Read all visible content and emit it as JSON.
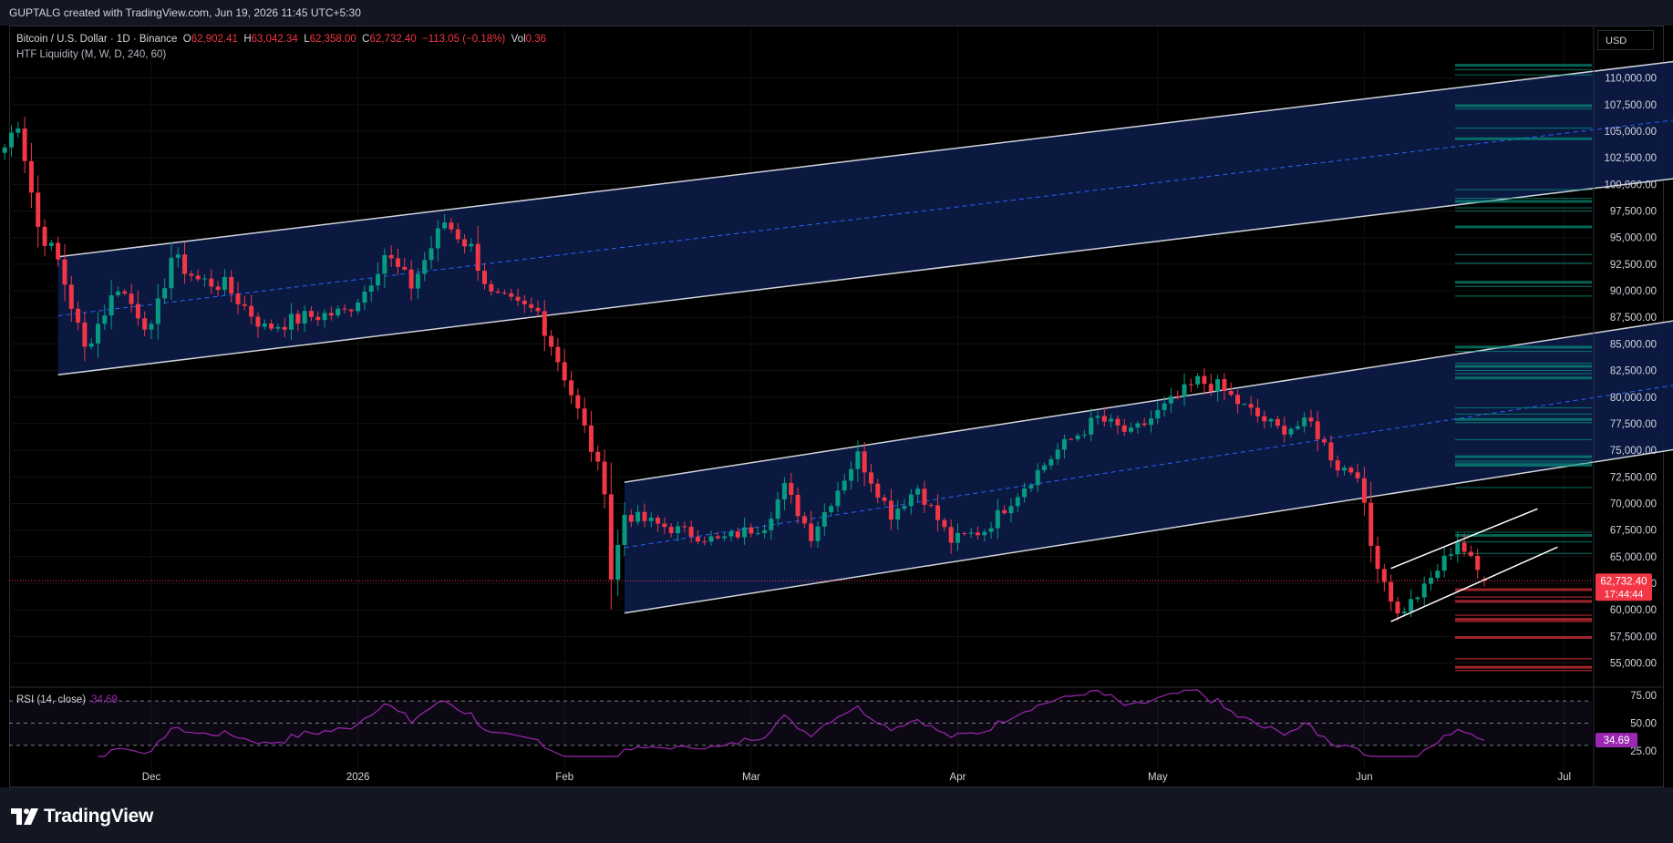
{
  "header": {
    "title": "GUPTALG created with TradingView.com, Jun 19, 2026 11:45 UTC+5:30"
  },
  "legend": {
    "symbol": "Bitcoin / U.S. Dollar · 1D · Binance",
    "o_label": "O",
    "o_val": "62,902.41",
    "h_label": "H",
    "h_val": "63,042.34",
    "l_label": "L",
    "l_val": "62,358.00",
    "c_label": "C",
    "c_val": "62,732.40",
    "change": "−113.05 (−0.18%)",
    "vol_label": "Vol",
    "vol_val": "0.36",
    "indicator": "HTF Liquidity (M, W, D, 240, 60)"
  },
  "rsi": {
    "label": "RSI (14, close)",
    "value": "34.69",
    "ticks": [
      "75.00",
      "50.00",
      "25.00"
    ]
  },
  "footer": {
    "brand": "TradingView"
  },
  "colors": {
    "up": "#089981",
    "down": "#f23645",
    "rsi_line": "#9c27b0",
    "channel_fill": "#0c1a45"
  },
  "chart_data": {
    "type": "candlestick",
    "currency": "USD",
    "price_axis": {
      "ticks": [
        "110,000.00",
        "107,500.00",
        "105,000.00",
        "102,500.00",
        "100,000.00",
        "97,500.00",
        "95,000.00",
        "92,500.00",
        "90,000.00",
        "87,500.00",
        "85,000.00",
        "82,500.00",
        "80,000.00",
        "77,500.00",
        "75,000.00",
        "72,500.00",
        "70,000.00",
        "67,500.00",
        "65,000.00",
        "62,500.00",
        "60,000.00",
        "57,500.00",
        "55,000.00"
      ],
      "range": [
        53500,
        112200
      ]
    },
    "time_axis": [
      "Dec",
      "2026",
      "Feb",
      "Mar",
      "Apr",
      "May",
      "Jun",
      "Jul"
    ],
    "last_price": {
      "value": 62732.4,
      "label": "62,732.40",
      "countdown": "17:44:44"
    },
    "series": [
      {
        "name": "Bitcoin / U.S. Dollar",
        "anchors": [
          [
            "2025-11-09",
            103500
          ],
          [
            "2025-11-11",
            106000
          ],
          [
            "2025-11-14",
            96000
          ],
          [
            "2025-11-17",
            92800
          ],
          [
            "2025-11-21",
            84500
          ],
          [
            "2025-11-26",
            90500
          ],
          [
            "2025-12-01",
            86200
          ],
          [
            "2025-12-04",
            93200
          ],
          [
            "2025-12-08",
            91000
          ],
          [
            "2025-12-12",
            90500
          ],
          [
            "2025-12-18",
            86500
          ],
          [
            "2025-12-24",
            87500
          ],
          [
            "2025-12-30",
            88000
          ],
          [
            "2026-01-02",
            90000
          ],
          [
            "2026-01-05",
            93500
          ],
          [
            "2026-01-09",
            90500
          ],
          [
            "2026-01-14",
            96500
          ],
          [
            "2026-01-18",
            94000
          ],
          [
            "2026-01-21",
            89500
          ],
          [
            "2026-01-25",
            88500
          ],
          [
            "2026-01-28",
            88000
          ],
          [
            "2026-02-01",
            82000
          ],
          [
            "2026-02-04",
            77000
          ],
          [
            "2026-02-07",
            71500
          ],
          [
            "2026-02-08",
            63000
          ],
          [
            "2026-02-10",
            69000
          ],
          [
            "2026-02-15",
            68000
          ],
          [
            "2026-02-24",
            66500
          ],
          [
            "2026-03-03",
            68000
          ],
          [
            "2026-03-06",
            71500
          ],
          [
            "2026-03-10",
            67000
          ],
          [
            "2026-03-15",
            72500
          ],
          [
            "2026-03-17",
            74500
          ],
          [
            "2026-03-22",
            69000
          ],
          [
            "2026-03-26",
            71500
          ],
          [
            "2026-03-31",
            66500
          ],
          [
            "2026-04-05",
            67500
          ],
          [
            "2026-04-10",
            71000
          ],
          [
            "2026-04-16",
            75000
          ],
          [
            "2026-04-22",
            78000
          ],
          [
            "2026-04-27",
            76500
          ],
          [
            "2026-05-02",
            79000
          ],
          [
            "2026-05-07",
            81500
          ],
          [
            "2026-05-10",
            81000
          ],
          [
            "2026-05-14",
            79000
          ],
          [
            "2026-05-19",
            77000
          ],
          [
            "2026-05-24",
            77500
          ],
          [
            "2026-05-28",
            73500
          ],
          [
            "2026-05-31",
            73000
          ],
          [
            "2026-06-02",
            66000
          ],
          [
            "2026-06-06",
            59500
          ],
          [
            "2026-06-10",
            62000
          ],
          [
            "2026-06-15",
            66500
          ],
          [
            "2026-06-19",
            62732
          ]
        ]
      }
    ]
  }
}
